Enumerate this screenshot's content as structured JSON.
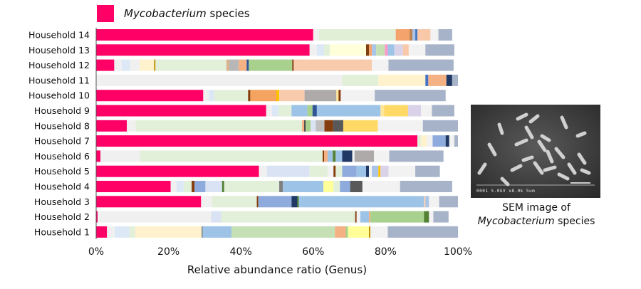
{
  "legend": {
    "em": "Mycobacterium",
    "rest": " species",
    "color": "#ff0066"
  },
  "sem": {
    "caption_line1": "SEM image of",
    "caption_em": "Mycobacterium",
    "caption_rest": " species",
    "info_text": "0001 5.0kV  x8.0k  5um"
  },
  "chart_data": {
    "type": "bar",
    "orientation": "horizontal",
    "stacked": true,
    "xlabel": "Relative abundance ratio (Genus)",
    "ylabel": "",
    "xlim": [
      0,
      100
    ],
    "xticks": [
      "0%",
      "20%",
      "40%",
      "60%",
      "80%",
      "100%"
    ],
    "grid": false,
    "legend_position": "top-left",
    "categories": [
      "Household 14",
      "Household 13",
      "Household 12",
      "Household 11",
      "Household 10",
      "Household 9",
      "Household 8",
      "Household 7",
      "Household 6",
      "Household 5",
      "Household 4",
      "Household 3",
      "Household 2",
      "Household 1"
    ],
    "series": [
      {
        "name": "Mycobacterium species",
        "color": "#ff0066",
        "values": [
          60,
          59,
          5,
          0,
          29.6,
          47,
          8.5,
          88.8,
          1.2,
          45,
          20.6,
          29,
          0.4,
          3
        ]
      }
    ],
    "other_segments": [
      [
        [
          1.6,
          "#f0f0f0"
        ],
        [
          21.2,
          "#e1efd7"
        ],
        [
          3.8,
          "#f5a36c"
        ],
        [
          0.8,
          "#c08452"
        ],
        [
          0.8,
          "#a9c4e6"
        ],
        [
          0.6,
          "#4a78c0"
        ],
        [
          3.6,
          "#f8c8a8"
        ],
        [
          2.2,
          "#f2f2f2"
        ],
        [
          3.8,
          "#a7b3c8"
        ]
      ],
      [
        [
          2,
          "#f0f0f0"
        ],
        [
          2,
          "#dce8f5"
        ],
        [
          1.6,
          "#e2efd9"
        ],
        [
          10,
          "#ffffd9"
        ],
        [
          0.8,
          "#7f3f10"
        ],
        [
          0.8,
          "#f5a36c"
        ],
        [
          1.2,
          "#a9c4e6"
        ],
        [
          2.4,
          "#c6e0b4"
        ],
        [
          0.8,
          "#ff99cc"
        ],
        [
          1.8,
          "#9dc3e6"
        ],
        [
          2.4,
          "#d9d2e9"
        ],
        [
          1.6,
          "#f8c8a8"
        ],
        [
          4.6,
          "#f2f2f2"
        ],
        [
          8,
          "#a7b3c8"
        ]
      ],
      [
        [
          2,
          "#f0f0f0"
        ],
        [
          2.4,
          "#dce8f5"
        ],
        [
          2.6,
          "#f0f0f0"
        ],
        [
          4,
          "#fff2cc"
        ],
        [
          0.4,
          "#c09000"
        ],
        [
          19.6,
          "#e2efd9"
        ],
        [
          0.8,
          "#d9b38c"
        ],
        [
          2.6,
          "#b7b7b7"
        ],
        [
          2.2,
          "#f4b183"
        ],
        [
          0.6,
          "#2f5597"
        ],
        [
          12,
          "#a9d18e"
        ],
        [
          0.4,
          "#843c0c"
        ],
        [
          21.6,
          "#f8cbad"
        ],
        [
          4.6,
          "#f2f2f2"
        ],
        [
          18,
          "#a7b3c8"
        ]
      ],
      [
        [
          68,
          "#f0f0f0"
        ],
        [
          10,
          "#e2efd9"
        ],
        [
          13,
          "#fff2cc"
        ],
        [
          0.8,
          "#4472c4"
        ],
        [
          5,
          "#f4b183"
        ],
        [
          1.6,
          "#203864"
        ],
        [
          1.6,
          "#a7b3c8"
        ]
      ],
      [
        [
          1.6,
          "#f0f0f0"
        ],
        [
          1.4,
          "#dce8f5"
        ],
        [
          9.4,
          "#e2efd9"
        ],
        [
          0.6,
          "#843c0c"
        ],
        [
          7.2,
          "#f4a460"
        ],
        [
          0.8,
          "#ffc000"
        ],
        [
          7,
          "#f8cbad"
        ],
        [
          8.8,
          "#aeaaaa"
        ],
        [
          0.6,
          "#ffe699"
        ],
        [
          0.6,
          "#843c0c"
        ],
        [
          9.4,
          "#f2f2f2"
        ],
        [
          19.6,
          "#a7b3c8"
        ]
      ],
      [
        [
          1.6,
          "#f0f0f0"
        ],
        [
          1.8,
          "#dce8f5"
        ],
        [
          3.6,
          "#e2efd9"
        ],
        [
          4.4,
          "#9dc3e6"
        ],
        [
          1.4,
          "#a9d18e"
        ],
        [
          1.2,
          "#2f5597"
        ],
        [
          17.6,
          "#9dc3e6"
        ],
        [
          1,
          "#ffe699"
        ],
        [
          6.6,
          "#ffd966"
        ],
        [
          3.6,
          "#d9d2e9"
        ],
        [
          3,
          "#f2f2f2"
        ],
        [
          6.2,
          "#a7b3c8"
        ]
      ],
      [
        [
          2.4,
          "#f0f0f0"
        ],
        [
          46,
          "#e2efd9"
        ],
        [
          0.6,
          "#f4b183"
        ],
        [
          0.4,
          "#404040"
        ],
        [
          1.4,
          "#a9d18e"
        ],
        [
          1.4,
          "#dae3f3"
        ],
        [
          2.4,
          "#bfbfbf"
        ],
        [
          2.4,
          "#843c0c"
        ],
        [
          2.8,
          "#595959"
        ],
        [
          9.6,
          "#ffd966"
        ],
        [
          12.4,
          "#f2f2f2"
        ],
        [
          10.2,
          "#a7b3c8"
        ]
      ],
      [
        [
          1,
          "#e2efd9"
        ],
        [
          1.6,
          "#fff2cc"
        ],
        [
          1.6,
          "#f2f2f2"
        ],
        [
          3.6,
          "#8faadc"
        ],
        [
          1,
          "#203864"
        ],
        [
          1.4,
          "#f2f2f2"
        ],
        [
          1,
          "#a7b3c8"
        ]
      ],
      [
        [
          11,
          "#f0f0f0"
        ],
        [
          50.4,
          "#e2efd9"
        ],
        [
          0.4,
          "#843c0c"
        ],
        [
          1,
          "#f4b183"
        ],
        [
          1.4,
          "#9dc3e6"
        ],
        [
          0.8,
          "#548235"
        ],
        [
          1.8,
          "#9dc3e6"
        ],
        [
          2.8,
          "#203864"
        ],
        [
          0.6,
          "#f2f2f2"
        ],
        [
          5.4,
          "#aeaaaa"
        ],
        [
          4.2,
          "#f2f2f2"
        ],
        [
          15,
          "#a7b3c8"
        ]
      ],
      [
        [
          2.2,
          "#f0f0f0"
        ],
        [
          11.8,
          "#dae3f3"
        ],
        [
          5,
          "#e2efd9"
        ],
        [
          1.6,
          "#f2f2f2"
        ],
        [
          0.6,
          "#843c0c"
        ],
        [
          1.8,
          "#e2efd9"
        ],
        [
          4,
          "#8faadc"
        ],
        [
          2.6,
          "#9dc3e6"
        ],
        [
          0.8,
          "#1f3864"
        ],
        [
          0.8,
          "#f2f2f2"
        ],
        [
          1.8,
          "#a9c4e6"
        ],
        [
          0.6,
          "#ffc000"
        ],
        [
          2.2,
          "#d9d2e9"
        ],
        [
          1.2,
          "#f2f2f2"
        ],
        [
          6.2,
          "#f2f2f2"
        ],
        [
          6.8,
          "#a7b3c8"
        ]
      ],
      [
        [
          1.6,
          "#f0f0f0"
        ],
        [
          2,
          "#dce8f5"
        ],
        [
          2.2,
          "#e2efd9"
        ],
        [
          0.8,
          "#843c0c"
        ],
        [
          3,
          "#8faadc"
        ],
        [
          4.6,
          "#dae3f3"
        ],
        [
          0.6,
          "#548235"
        ],
        [
          15.2,
          "#e2efd9"
        ],
        [
          1,
          "#7f7f7f"
        ],
        [
          11.2,
          "#9dc3e6"
        ],
        [
          2.8,
          "#ffff99"
        ],
        [
          1.8,
          "#e2efd9"
        ],
        [
          2.8,
          "#8faadc"
        ],
        [
          3.4,
          "#595959"
        ],
        [
          10.4,
          "#f2f2f2"
        ],
        [
          14.4,
          "#a7b3c8"
        ]
      ],
      [
        [
          3,
          "#f0f0f0"
        ],
        [
          12.4,
          "#e2efd9"
        ],
        [
          0.4,
          "#843c0c"
        ],
        [
          9.2,
          "#8faadc"
        ],
        [
          1.6,
          "#203864"
        ],
        [
          0.4,
          "#548235"
        ],
        [
          34.6,
          "#9dc3e6"
        ],
        [
          0.4,
          "#f8cbad"
        ],
        [
          1,
          "#a9c4e6"
        ],
        [
          2.8,
          "#f2f2f2"
        ],
        [
          6.2,
          "#a7b3c8"
        ]
      ],
      [
        [
          31.4,
          "#f0f0f0"
        ],
        [
          2.8,
          "#dae3f3"
        ],
        [
          37,
          "#e2efd9"
        ],
        [
          0.4,
          "#843c0c"
        ],
        [
          1,
          "#f2f2f2"
        ],
        [
          2.4,
          "#9dc3e6"
        ],
        [
          0.4,
          "#f4b183"
        ],
        [
          14.8,
          "#a9d18e"
        ],
        [
          1.4,
          "#548235"
        ],
        [
          1.2,
          "#f2f2f2"
        ],
        [
          4.2,
          "#a7b3c8"
        ]
      ],
      [
        [
          2.2,
          "#f0f0f0"
        ],
        [
          4,
          "#dce8f5"
        ],
        [
          1.6,
          "#e2efd9"
        ],
        [
          18.4,
          "#fff2cc"
        ],
        [
          0.2,
          "#404040"
        ],
        [
          8,
          "#9dc3e6"
        ],
        [
          28.6,
          "#c5e0b4"
        ],
        [
          3,
          "#f4b183"
        ],
        [
          0.6,
          "#a9d18e"
        ],
        [
          5.8,
          "#ffff99"
        ],
        [
          0.4,
          "#c09000"
        ],
        [
          4.8,
          "#f2f2f2"
        ],
        [
          19.4,
          "#a7b3c8"
        ]
      ]
    ]
  }
}
